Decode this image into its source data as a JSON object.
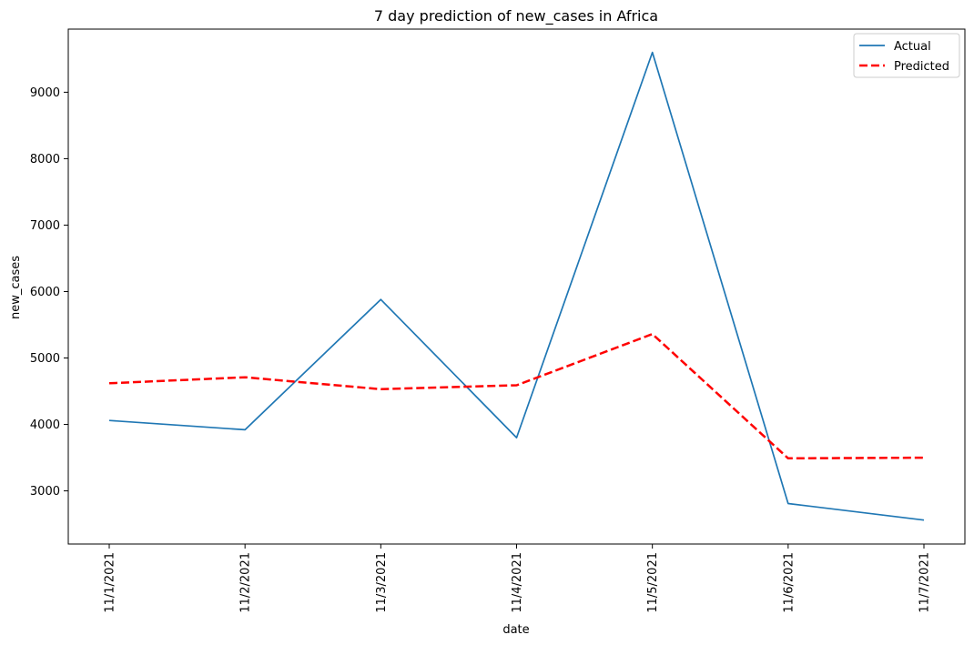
{
  "chart_data": {
    "type": "line",
    "title": "7 day prediction of new_cases in Africa",
    "xlabel": "date",
    "ylabel": "new_cases",
    "categories": [
      "11/1/2021",
      "11/2/2021",
      "11/3/2021",
      "11/4/2021",
      "11/5/2021",
      "11/6/2021",
      "11/7/2021"
    ],
    "ylim": [
      2200,
      9950
    ],
    "yticks": [
      3000,
      4000,
      5000,
      6000,
      7000,
      8000,
      9000
    ],
    "grid": false,
    "legend_position": "top-right",
    "series": [
      {
        "name": "Actual",
        "color": "#1f77b4",
        "style": "solid",
        "values": [
          4060,
          3920,
          5880,
          3800,
          9600,
          2810,
          2560
        ]
      },
      {
        "name": "Predicted",
        "color": "#ff0000",
        "style": "dashed",
        "values": [
          4620,
          4710,
          4530,
          4590,
          5360,
          3490,
          3500
        ]
      }
    ]
  }
}
